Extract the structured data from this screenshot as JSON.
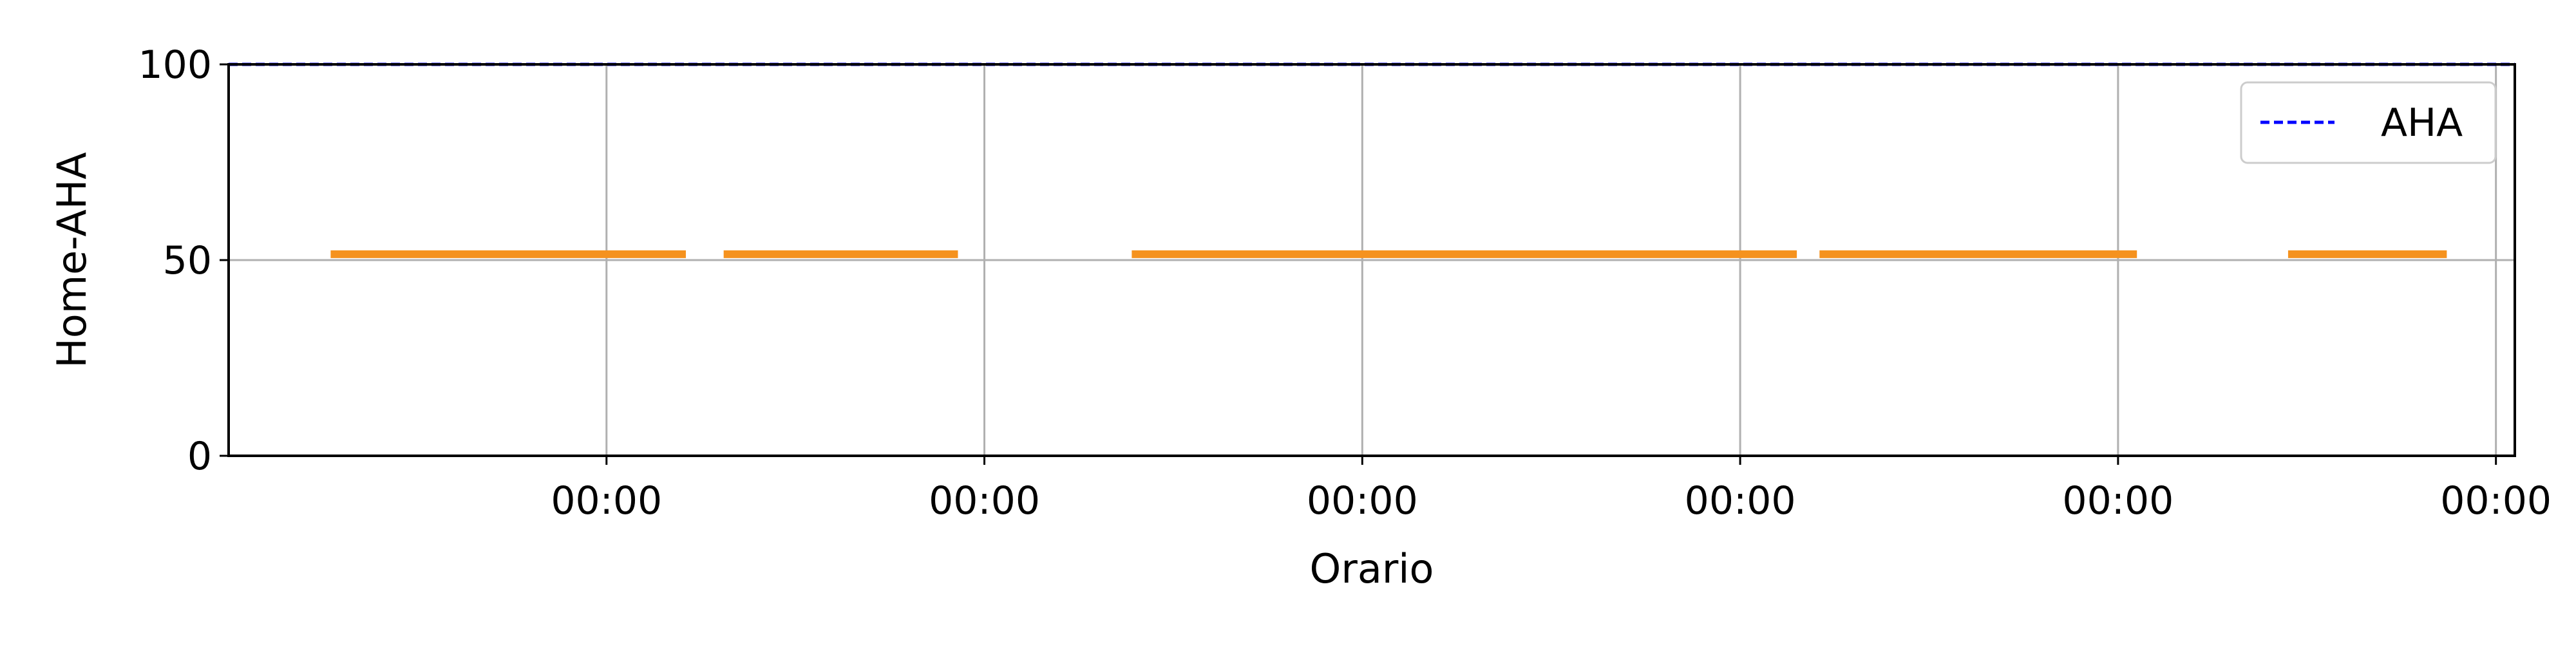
{
  "chart_data": {
    "type": "line",
    "xlabel": "Orario",
    "ylabel": "Home-AHA",
    "ylim": [
      0,
      100
    ],
    "xlim": [
      0,
      6.05
    ],
    "yticks": [
      0,
      50,
      100
    ],
    "xticks": [
      {
        "value": 1,
        "label": "00:00"
      },
      {
        "value": 2,
        "label": "00:00"
      },
      {
        "value": 3,
        "label": "00:00"
      },
      {
        "value": 4,
        "label": "00:00"
      },
      {
        "value": 5,
        "label": "00:00"
      },
      {
        "value": 6,
        "label": "00:00"
      }
    ],
    "grid": true,
    "legend": {
      "placement": "top-right",
      "entries": [
        {
          "label": "AHA",
          "color": "#0000ff",
          "style": "dashed"
        }
      ]
    },
    "series": [
      {
        "name": "AHA",
        "color": "#0000ff",
        "style": "dashed",
        "segments": [
          {
            "x_start": 0,
            "x_end": 6.05,
            "y": 100
          }
        ]
      },
      {
        "color": "#f5921e",
        "style": "solid",
        "segments": [
          {
            "x_start": 0.27,
            "x_end": 1.21,
            "y": 51.5
          },
          {
            "x_start": 1.31,
            "x_end": 1.93,
            "y": 51.5
          },
          {
            "x_start": 2.39,
            "x_end": 4.15,
            "y": 51.5
          },
          {
            "x_start": 4.21,
            "x_end": 5.05,
            "y": 51.5
          },
          {
            "x_start": 5.45,
            "x_end": 5.87,
            "y": 51.5
          }
        ]
      }
    ]
  }
}
